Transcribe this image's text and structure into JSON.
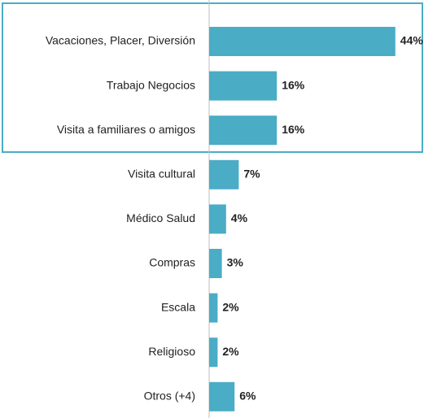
{
  "chart_data": {
    "type": "bar",
    "orientation": "horizontal",
    "categories": [
      "Vacaciones, Placer, Diversión",
      "Trabajo Negocios",
      "Visita a familiares o amigos",
      "Visita cultural",
      "Médico Salud",
      "Compras",
      "Escala",
      "Religioso",
      "Otros (+4)"
    ],
    "values": [
      44,
      16,
      16,
      7,
      4,
      3,
      2,
      2,
      6
    ],
    "value_labels": [
      "44%",
      "16%",
      "16%",
      "7%",
      "4%",
      "3%",
      "2%",
      "2%",
      "6%"
    ],
    "color": "#4bacc6"
  }
}
